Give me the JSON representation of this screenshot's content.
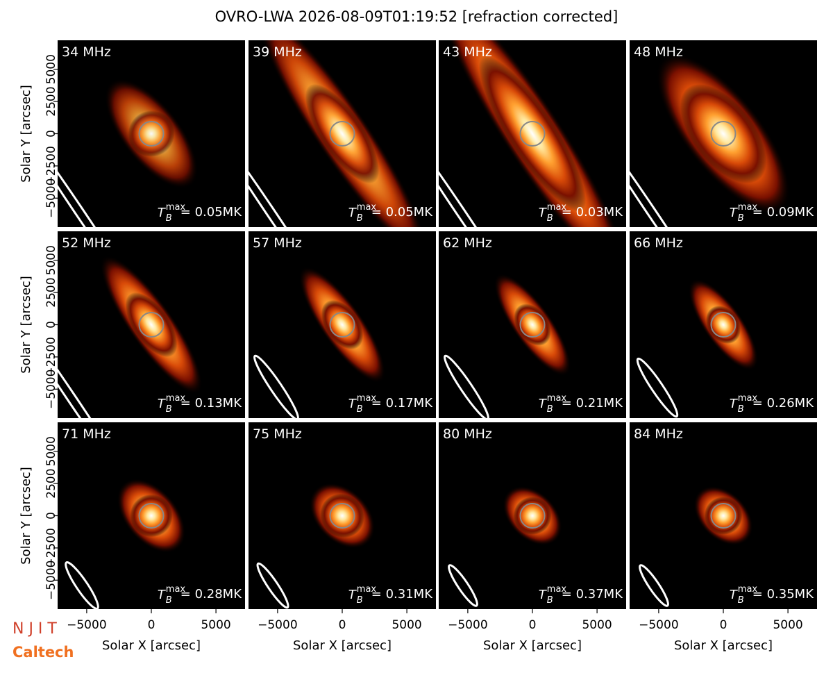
{
  "title": "OVRO-LWA 2026-08-09T01:19:52 [refraction corrected]",
  "logos": [
    "N J I T",
    "Caltech"
  ],
  "chart_data": [
    {
      "type": "image",
      "title": "34 MHz",
      "annotation": {
        "symbol": "T",
        "sub": "B",
        "sup": "max",
        "text": "= 0.05MK"
      },
      "xlim": [
        -7250,
        7250
      ],
      "ylim": [
        -7250,
        7250
      ],
      "ylabel": "Solar Y [arcsec]",
      "yticks": [
        {
          "value": -5000,
          "label": "−5000"
        },
        {
          "value": -2500,
          "label": "−2500"
        },
        0,
        2500,
        5000
      ]
    },
    {
      "type": "image",
      "title": "39 MHz",
      "annotation": {
        "symbol": "T",
        "sub": "B",
        "sup": "max",
        "text": "= 0.05MK"
      },
      "xlim": [
        -7250,
        7250
      ],
      "ylim": [
        -7250,
        7250
      ]
    },
    {
      "type": "image",
      "title": "43 MHz",
      "annotation": {
        "symbol": "T",
        "sub": "B",
        "sup": "max",
        "text": "= 0.03MK"
      },
      "xlim": [
        -7250,
        7250
      ],
      "ylim": [
        -7250,
        7250
      ]
    },
    {
      "type": "image",
      "title": "48 MHz",
      "annotation": {
        "symbol": "T",
        "sub": "B",
        "sup": "max",
        "text": "= 0.09MK"
      },
      "xlim": [
        -7250,
        7250
      ],
      "ylim": [
        -7250,
        7250
      ]
    },
    {
      "type": "image",
      "title": "52 MHz",
      "annotation": {
        "symbol": "T",
        "sub": "B",
        "sup": "max",
        "text": "= 0.13MK"
      },
      "xlim": [
        -7250,
        7250
      ],
      "ylim": [
        -7250,
        7250
      ],
      "ylabel": "Solar Y [arcsec]",
      "yticks": [
        {
          "value": -5000,
          "label": "−5000"
        },
        {
          "value": -2500,
          "label": "−2500"
        },
        0,
        2500,
        5000
      ]
    },
    {
      "type": "image",
      "title": "57 MHz",
      "annotation": {
        "symbol": "T",
        "sub": "B",
        "sup": "max",
        "text": "= 0.17MK"
      },
      "xlim": [
        -7250,
        7250
      ],
      "ylim": [
        -7250,
        7250
      ]
    },
    {
      "type": "image",
      "title": "62 MHz",
      "annotation": {
        "symbol": "T",
        "sub": "B",
        "sup": "max",
        "text": "= 0.21MK"
      },
      "xlim": [
        -7250,
        7250
      ],
      "ylim": [
        -7250,
        7250
      ]
    },
    {
      "type": "image",
      "title": "66 MHz",
      "annotation": {
        "symbol": "T",
        "sub": "B",
        "sup": "max",
        "text": "= 0.26MK"
      },
      "xlim": [
        -7250,
        7250
      ],
      "ylim": [
        -7250,
        7250
      ]
    },
    {
      "type": "image",
      "title": "71 MHz",
      "annotation": {
        "symbol": "T",
        "sub": "B",
        "sup": "max",
        "text": "= 0.28MK"
      },
      "xlim": [
        -7250,
        7250
      ],
      "ylim": [
        -7250,
        7250
      ],
      "ylabel": "Solar Y [arcsec]",
      "xlabel": "Solar X [arcsec]",
      "yticks": [
        {
          "value": -5000,
          "label": "−5000"
        },
        {
          "value": -2500,
          "label": "−2500"
        },
        0,
        2500,
        5000
      ],
      "xticks": [
        {
          "value": -5000,
          "label": "−5000"
        },
        0,
        5000
      ]
    },
    {
      "type": "image",
      "title": "75 MHz",
      "annotation": {
        "symbol": "T",
        "sub": "B",
        "sup": "max",
        "text": "= 0.31MK"
      },
      "xlim": [
        -7250,
        7250
      ],
      "ylim": [
        -7250,
        7250
      ],
      "xlabel": "Solar X [arcsec]",
      "xticks": [
        {
          "value": -5000,
          "label": "−5000"
        },
        0,
        5000
      ]
    },
    {
      "type": "image",
      "title": "80 MHz",
      "annotation": {
        "symbol": "T",
        "sub": "B",
        "sup": "max",
        "text": "= 0.37MK"
      },
      "xlim": [
        -7250,
        7250
      ],
      "ylim": [
        -7250,
        7250
      ],
      "xlabel": "Solar X [arcsec]",
      "xticks": [
        {
          "value": -5000,
          "label": "−5000"
        },
        0,
        5000
      ]
    },
    {
      "type": "image",
      "title": "84 MHz",
      "annotation": {
        "symbol": "T",
        "sub": "B",
        "sup": "max",
        "text": "= 0.35MK"
      },
      "xlim": [
        -7250,
        7250
      ],
      "ylim": [
        -7250,
        7250
      ],
      "xlabel": "Solar X [arcsec]",
      "xticks": [
        {
          "value": -5000,
          "label": "−5000"
        },
        0,
        5000
      ]
    }
  ]
}
